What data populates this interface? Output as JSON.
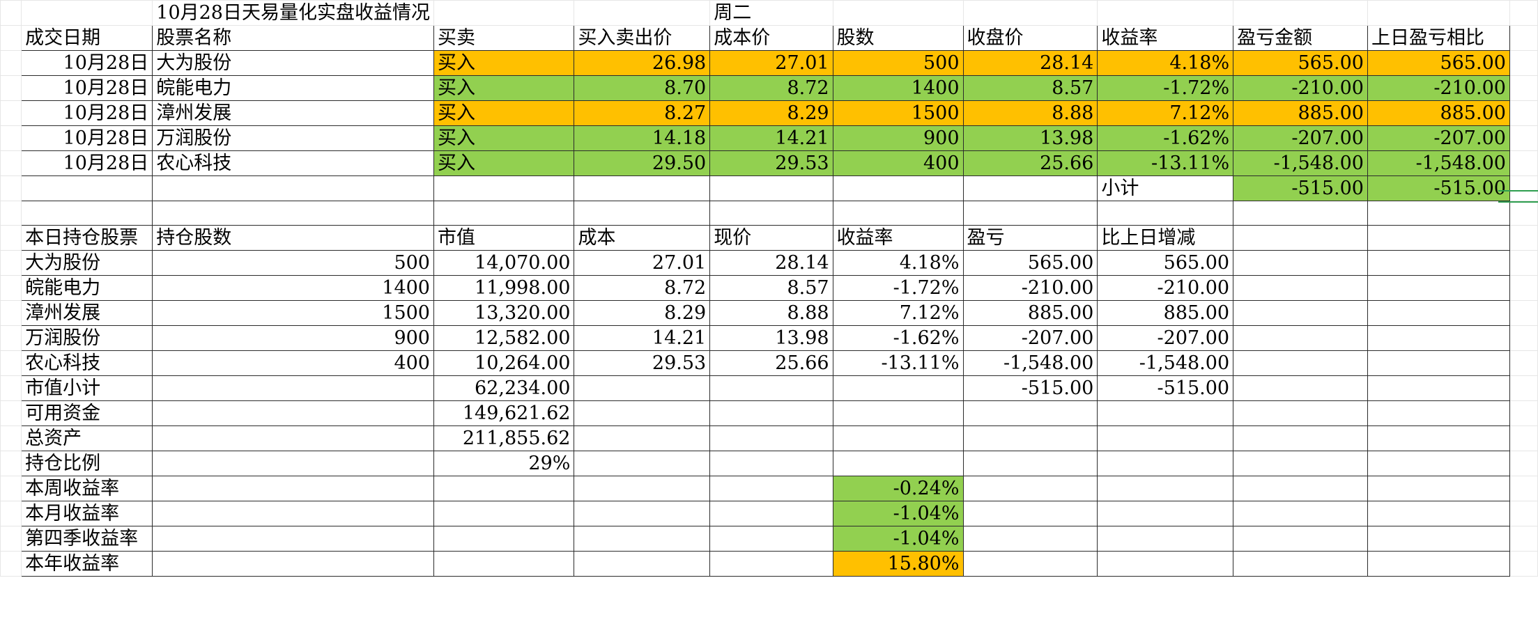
{
  "title": "10月28日天易量化实盘收益情况",
  "weekday": "周二",
  "trades": {
    "headers": [
      "成交日期",
      "股票名称",
      "买卖",
      "买入卖出价",
      "成本价",
      "股数",
      "收盘价",
      "收益率",
      "盈亏金额",
      "上日盈亏相比"
    ],
    "rows": [
      {
        "date": "10月28日",
        "name": "大为股份",
        "side": "买入",
        "price": "26.98",
        "cost": "27.01",
        "shares": "500",
        "close": "28.14",
        "rate": "4.18%",
        "pnl": "565.00",
        "prev": "565.00",
        "color": "#ffc000"
      },
      {
        "date": "10月28日",
        "name": "皖能电力",
        "side": "买入",
        "price": "8.70",
        "cost": "8.72",
        "shares": "1400",
        "close": "8.57",
        "rate": "-1.72%",
        "pnl": "-210.00",
        "prev": "-210.00",
        "color": "#92d050"
      },
      {
        "date": "10月28日",
        "name": "漳州发展",
        "side": "买入",
        "price": "8.27",
        "cost": "8.29",
        "shares": "1500",
        "close": "8.88",
        "rate": "7.12%",
        "pnl": "885.00",
        "prev": "885.00",
        "color": "#ffc000"
      },
      {
        "date": "10月28日",
        "name": "万润股份",
        "side": "买入",
        "price": "14.18",
        "cost": "14.21",
        "shares": "900",
        "close": "13.98",
        "rate": "-1.62%",
        "pnl": "-207.00",
        "prev": "-207.00",
        "color": "#92d050"
      },
      {
        "date": "10月28日",
        "name": "农心科技",
        "side": "买入",
        "price": "29.50",
        "cost": "29.53",
        "shares": "400",
        "close": "25.66",
        "rate": "-13.11%",
        "pnl": "-1,548.00",
        "prev": "-1,548.00",
        "color": "#92d050"
      }
    ],
    "subtotal": {
      "label": "小计",
      "pnl": "-515.00",
      "prev": "-515.00",
      "color": "#92d050"
    }
  },
  "holdings": {
    "headers": [
      "本日持仓股票",
      "持仓股数",
      "市值",
      "成本",
      "现价",
      "收益率",
      "盈亏",
      "比上日增减"
    ],
    "rows": [
      {
        "name": "大为股份",
        "shares": "500",
        "value": "14,070.00",
        "cost": "27.01",
        "price": "28.14",
        "rate": "4.18%",
        "pnl": "565.00",
        "diff": "565.00"
      },
      {
        "name": "皖能电力",
        "shares": "1400",
        "value": "11,998.00",
        "cost": "8.72",
        "price": "8.57",
        "rate": "-1.72%",
        "pnl": "-210.00",
        "diff": "-210.00"
      },
      {
        "name": "漳州发展",
        "shares": "1500",
        "value": "13,320.00",
        "cost": "8.29",
        "price": "8.88",
        "rate": "7.12%",
        "pnl": "885.00",
        "diff": "885.00"
      },
      {
        "name": "万润股份",
        "shares": "900",
        "value": "12,582.00",
        "cost": "14.21",
        "price": "13.98",
        "rate": "-1.62%",
        "pnl": "-207.00",
        "diff": "-207.00"
      },
      {
        "name": "农心科技",
        "shares": "400",
        "value": "10,264.00",
        "cost": "29.53",
        "price": "25.66",
        "rate": "-13.11%",
        "pnl": "-1,548.00",
        "diff": "-1,548.00"
      }
    ]
  },
  "summary": {
    "market_value_label": "市值小计",
    "market_value": "62,234.00",
    "market_pnl": "-515.00",
    "market_diff": "-515.00",
    "cash_label": "可用资金",
    "cash": "149,621.62",
    "total_label": "总资产",
    "total": "211,855.62",
    "ratio_label": "持仓比例",
    "ratio": "29%"
  },
  "returns": [
    {
      "label": "本周收益率",
      "value": "-0.24%",
      "color": "#92d050"
    },
    {
      "label": "本月收益率",
      "value": "-1.04%",
      "color": "#92d050"
    },
    {
      "label": "第四季收益率",
      "value": "-1.04%",
      "color": "#92d050"
    },
    {
      "label": "本年收益率",
      "value": "15.80%",
      "color": "#ffc000"
    }
  ]
}
